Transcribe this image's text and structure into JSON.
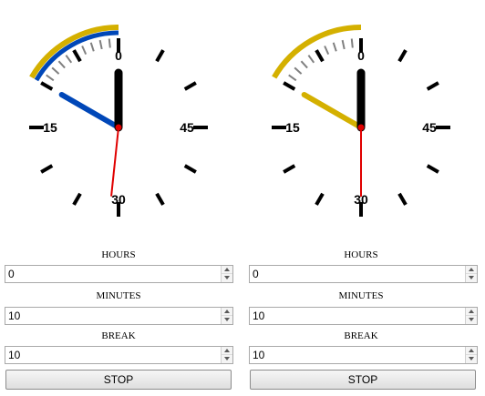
{
  "clocks": [
    {
      "dial_labels": {
        "top": "0",
        "left": "15",
        "right": "45",
        "bottom": "30"
      },
      "minute_hand_position": 0,
      "hour_hand_position": 10,
      "second_hand_position": 29,
      "arc_color": "#d4b000",
      "inner_arc_color": "#0047b8",
      "hour_hand_color": "#0047b8",
      "second_hand_color": "#e00000",
      "tick_color": "#000000",
      "elapsed_tick_color": "#808080",
      "arc_span_minutes": 10,
      "show_inner_arc": true
    },
    {
      "dial_labels": {
        "top": "0",
        "left": "15",
        "right": "45",
        "bottom": "30"
      },
      "minute_hand_position": 0,
      "hour_hand_position": 10,
      "second_hand_position": 30,
      "arc_color": "#d4b000",
      "inner_arc_color": "#d4b000",
      "hour_hand_color": "#d4b000",
      "second_hand_color": "#e00000",
      "tick_color": "#000000",
      "elapsed_tick_color": "#808080",
      "arc_span_minutes": 10,
      "show_inner_arc": false
    }
  ],
  "controls": [
    {
      "hours_label": "HOURS",
      "hours_value": "0",
      "minutes_label": "MINUTES",
      "minutes_value": "10",
      "break_label": "BREAK",
      "break_value": "10",
      "stop_label": "STOP"
    },
    {
      "hours_label": "HOURS",
      "hours_value": "0",
      "minutes_label": "MINUTES",
      "minutes_value": "10",
      "break_label": "BREAK",
      "break_value": "10",
      "stop_label": "STOP"
    }
  ]
}
